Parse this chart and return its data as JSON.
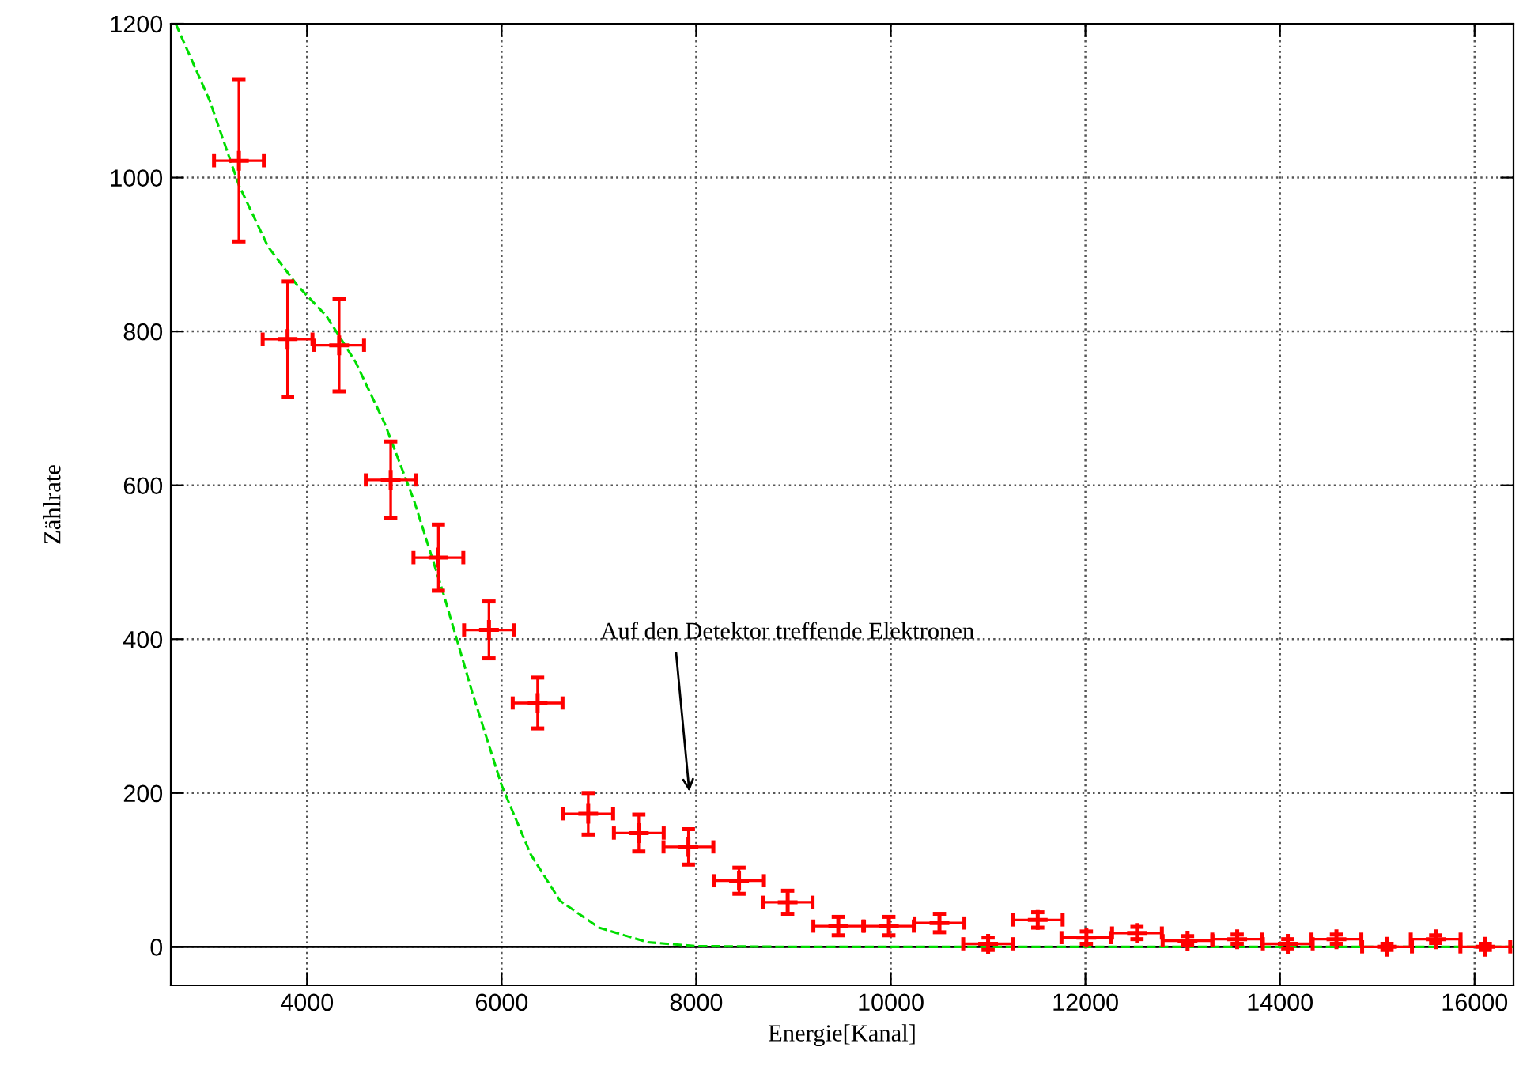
{
  "chart_data": {
    "type": "scatter",
    "xlabel": "Energie[Kanal]",
    "ylabel": "Zählrate",
    "xlim": [
      2600,
      16400
    ],
    "xticks": [
      4000,
      6000,
      8000,
      10000,
      12000,
      14000,
      16000
    ],
    "ylim": [
      -50,
      1200
    ],
    "yticks": [
      0,
      200,
      400,
      600,
      800,
      1000,
      1200
    ],
    "grid": true,
    "ref_lines": [
      {
        "axis": "y",
        "value": 0,
        "color": "#000000"
      }
    ],
    "annotations": [
      "Auf den Detektor treffende Elektronen"
    ],
    "series": [
      {
        "color": "#ff0000",
        "marker": "cross",
        "x": [
          3300,
          3800,
          4330,
          4860,
          5350,
          5870,
          6370,
          6890,
          7410,
          7920,
          8440,
          8940,
          9460,
          9980,
          10500,
          11000,
          11510,
          12010,
          12530,
          13050,
          13560,
          14080,
          14580,
          15100,
          15600,
          16110
        ],
        "values": [
          1022,
          790,
          782,
          607,
          506,
          412,
          317,
          173,
          148,
          130,
          86,
          58,
          27,
          27,
          31,
          4,
          35,
          12,
          18,
          8,
          10,
          4,
          10,
          0,
          10,
          0
        ],
        "errors": [
          105,
          75,
          60,
          50,
          43,
          37,
          33,
          27,
          24,
          23,
          17,
          15,
          12,
          12,
          12,
          8,
          10,
          8,
          8,
          6,
          6,
          6,
          6,
          4,
          5,
          4
        ],
        "xerrors": [
          256,
          256,
          256,
          256,
          256,
          256,
          256,
          256,
          256,
          256,
          256,
          256,
          256,
          256,
          256,
          256,
          256,
          256,
          256,
          256,
          256,
          256,
          256,
          256,
          256,
          256
        ]
      },
      {
        "type": "line",
        "color": "#00dd00",
        "line_style": "dashed",
        "x": [
          2650,
          3000,
          3300,
          3600,
          3900,
          4200,
          4500,
          4800,
          5100,
          5400,
          5700,
          6000,
          6300,
          6600,
          7000,
          7500,
          8000,
          9000,
          10000,
          12000,
          14000,
          16400
        ],
        "values": [
          1200,
          1100,
          990,
          910,
          860,
          820,
          760,
          680,
          580,
          460,
          330,
          210,
          120,
          60,
          25,
          6,
          1,
          0,
          0,
          0,
          0,
          0
        ]
      }
    ]
  }
}
